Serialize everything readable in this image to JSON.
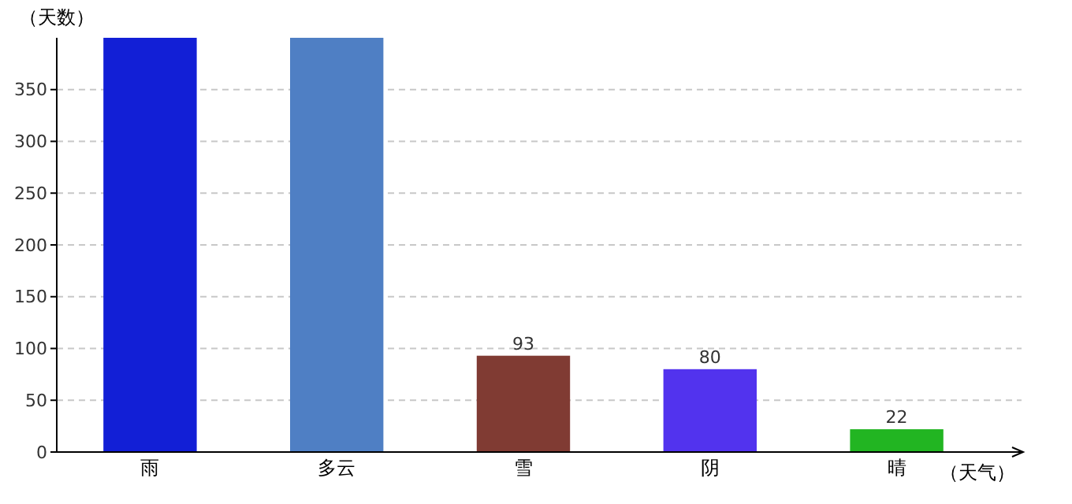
{
  "chart_data": {
    "type": "bar",
    "xlabel": "（天气）",
    "ylabel": "（天数）",
    "categories": [
      "雨",
      "多云",
      "雪",
      "阴",
      "晴"
    ],
    "values": [
      400,
      400,
      93,
      80,
      22
    ],
    "colors": [
      "#121fd6",
      "#4f7fc4",
      "#803b33",
      "#5233ee",
      "#22b522"
    ],
    "value_labels": [
      null,
      null,
      "93",
      "80",
      "22"
    ],
    "ylim": [
      0,
      400
    ],
    "yticks": [
      0,
      50,
      100,
      150,
      200,
      250,
      300,
      350
    ],
    "grid": "y"
  }
}
